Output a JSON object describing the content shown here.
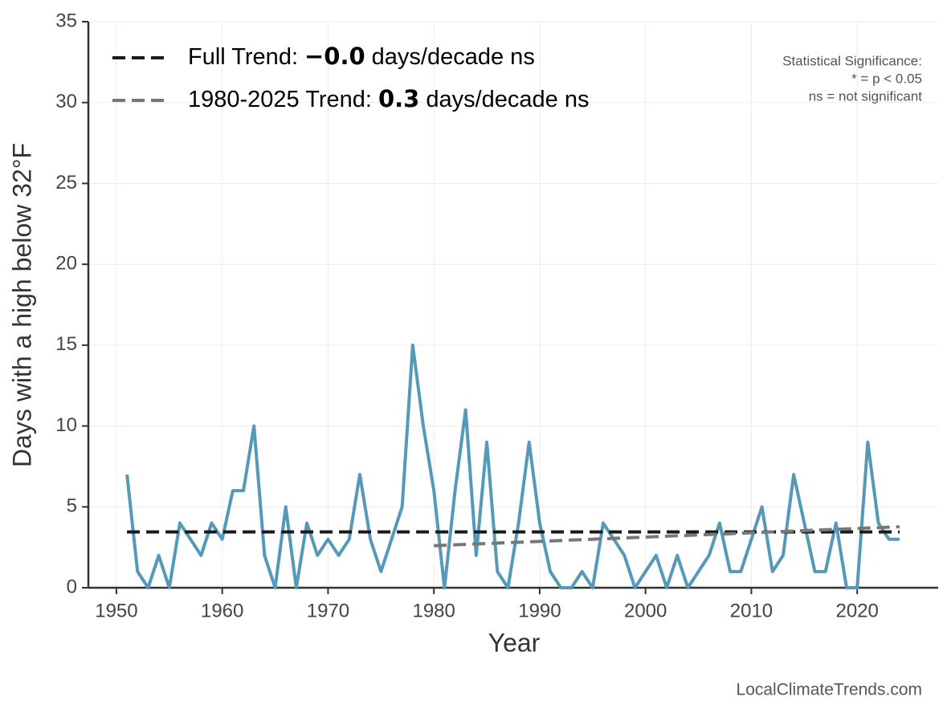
{
  "chart_data": {
    "type": "line",
    "x_label": "Year",
    "y_label": "Days with a high below 32°F",
    "x": [
      1951,
      1952,
      1953,
      1954,
      1955,
      1956,
      1957,
      1958,
      1959,
      1960,
      1961,
      1962,
      1963,
      1964,
      1965,
      1966,
      1967,
      1968,
      1969,
      1970,
      1971,
      1972,
      1973,
      1974,
      1975,
      1976,
      1977,
      1978,
      1979,
      1980,
      1981,
      1982,
      1983,
      1984,
      1985,
      1986,
      1987,
      1988,
      1989,
      1990,
      1991,
      1992,
      1993,
      1994,
      1995,
      1996,
      1997,
      1998,
      1999,
      2000,
      2001,
      2002,
      2003,
      2004,
      2005,
      2006,
      2007,
      2008,
      2009,
      2010,
      2011,
      2012,
      2013,
      2014,
      2015,
      2016,
      2017,
      2018,
      2019,
      2020,
      2021,
      2022,
      2023,
      2024
    ],
    "values": [
      7,
      1,
      0,
      2,
      0,
      4,
      3,
      2,
      4,
      3,
      6,
      6,
      10,
      2,
      0,
      5,
      0,
      4,
      2,
      3,
      2,
      3,
      7,
      3,
      1,
      3,
      5,
      15,
      10,
      6,
      0,
      6,
      11,
      2,
      9,
      1,
      0,
      4,
      9,
      4,
      1,
      0,
      0,
      1,
      0,
      4,
      3,
      2,
      0,
      1,
      2,
      0,
      2,
      0,
      1,
      2,
      4,
      1,
      1,
      3,
      5,
      1,
      2,
      7,
      4,
      1,
      1,
      4,
      0,
      0,
      9,
      4,
      3,
      3
    ],
    "color": "#5599b8",
    "trends": [
      {
        "legend_label": {
          "prefix": "Full Trend:",
          "value": "−0.0",
          "suffix": "days/decade ns"
        },
        "color": "#1a1a1a",
        "x": [
          1951,
          2024
        ],
        "values": [
          3.45,
          3.45
        ]
      },
      {
        "legend_label": {
          "prefix": "1980-2025 Trend:",
          "value": "0.3",
          "suffix": "days/decade ns"
        },
        "color": "#777777",
        "x": [
          1980,
          2024
        ],
        "values": [
          2.6,
          3.77
        ]
      }
    ],
    "significance_note": [
      "Statistical Significance:",
      "* = p < 0.05",
      "ns = not significant"
    ],
    "source": "LocalClimateTrends.com",
    "xlim": [
      1947.35,
      2027.65
    ],
    "xticks": [
      1950,
      1960,
      1970,
      1980,
      1990,
      2000,
      2010,
      2020
    ],
    "ylim": [
      0,
      35
    ],
    "yticks": [
      0,
      5,
      10,
      15,
      20,
      25,
      30,
      35
    ],
    "grid": true
  }
}
